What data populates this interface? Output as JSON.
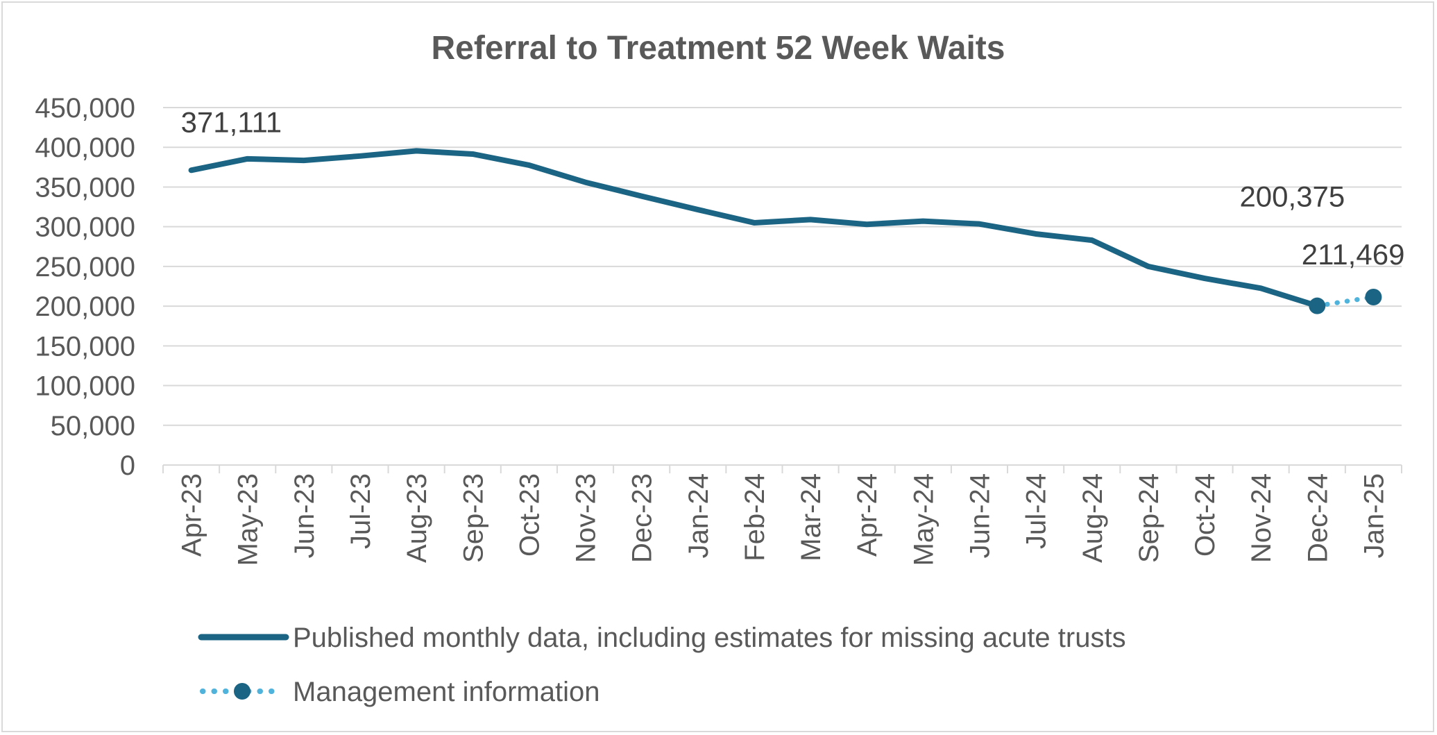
{
  "chart_data": {
    "type": "line",
    "title": "Referral to Treatment 52 Week Waits",
    "categories": [
      "Apr-23",
      "May-23",
      "Jun-23",
      "Jul-23",
      "Aug-23",
      "Sep-23",
      "Oct-23",
      "Nov-23",
      "Dec-23",
      "Jan-24",
      "Feb-24",
      "Mar-24",
      "Apr-24",
      "May-24",
      "Jun-24",
      "Jul-24",
      "Aug-24",
      "Sep-24",
      "Oct-24",
      "Nov-24",
      "Dec-24",
      "Jan-25"
    ],
    "ylim": [
      0,
      450000
    ],
    "yticks": [
      0,
      50000,
      100000,
      150000,
      200000,
      250000,
      300000,
      350000,
      400000,
      450000
    ],
    "ytick_labels": [
      "0",
      "50,000",
      "100,000",
      "150,000",
      "200,000",
      "250,000",
      "300,000",
      "350,000",
      "400,000",
      "450,000"
    ],
    "grid": true,
    "legend_position": "bottom",
    "series": [
      {
        "name": "Published monthly data, including estimates for missing acute trusts",
        "color": "#1b6483",
        "style": "solid",
        "values": [
          371111,
          385500,
          383500,
          389000,
          395500,
          391500,
          377500,
          356000,
          338500,
          321500,
          305000,
          309000,
          303000,
          307000,
          303500,
          291000,
          283000,
          250000,
          235000,
          222500,
          200375,
          null
        ]
      },
      {
        "name": "Management information",
        "color": "#4fb3dc",
        "marker_color": "#1b6483",
        "style": "dotted",
        "values": [
          null,
          null,
          null,
          null,
          null,
          null,
          null,
          null,
          null,
          null,
          null,
          null,
          null,
          null,
          null,
          null,
          null,
          null,
          null,
          null,
          200375,
          211469
        ]
      }
    ],
    "annotations": [
      {
        "text": "371,111",
        "series": 0,
        "index": 0
      },
      {
        "text": "200,375",
        "series": 0,
        "index": 20
      },
      {
        "text": "211,469",
        "series": 1,
        "index": 21
      }
    ]
  }
}
